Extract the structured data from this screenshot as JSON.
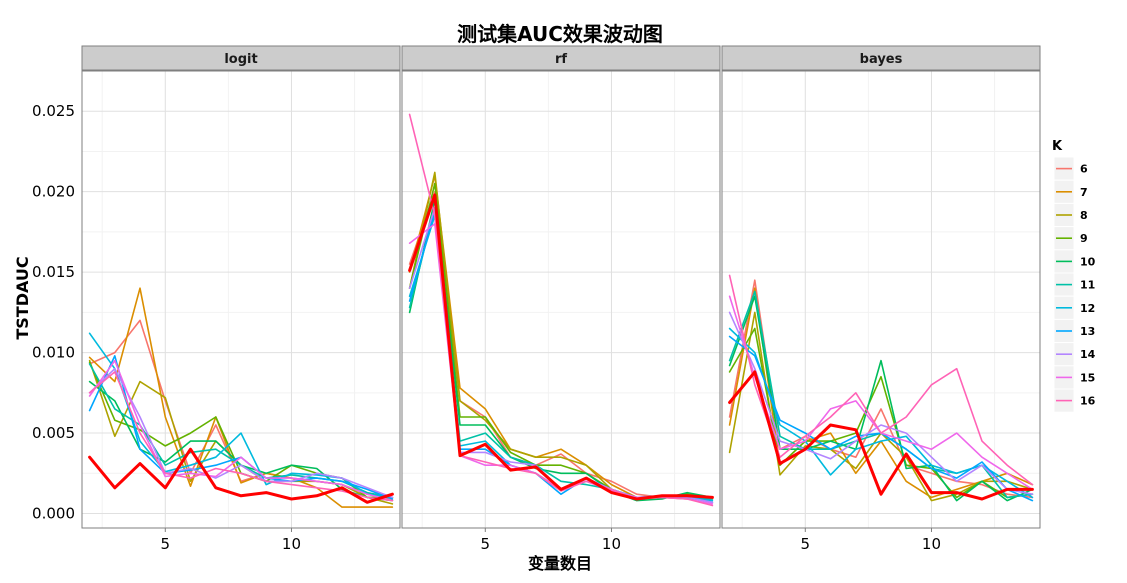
{
  "chart_data": {
    "type": "line",
    "title": "测试集AUC效果波动图",
    "xlabel": "变量数目",
    "ylabel": "TSTDAUC",
    "xlim": [
      1.7,
      14.3
    ],
    "ylim": [
      -0.0009,
      0.0275
    ],
    "x_ticks": [
      5,
      10
    ],
    "y_ticks": [
      0.0,
      0.005,
      0.01,
      0.015,
      0.02,
      0.025
    ],
    "y_tick_labels": [
      "0.000",
      "0.005",
      "0.010",
      "0.015",
      "0.020",
      "0.025"
    ],
    "grid": true,
    "legend": {
      "title": "K",
      "placement": "right"
    },
    "x": [
      2,
      3,
      4,
      5,
      6,
      7,
      8,
      9,
      10,
      11,
      12,
      13,
      14
    ],
    "panels": [
      {
        "name": "logit",
        "series": [
          {
            "name": "6",
            "color": "#F8766D",
            "values": [
              0.0093,
              0.01,
              0.012,
              0.007,
              0.0025,
              0.0055,
              0.002,
              0.0025,
              0.0022,
              0.002,
              0.0018,
              0.0012,
              0.0009
            ]
          },
          {
            "name": "7",
            "color": "#DB8E00",
            "values": [
              0.0097,
              0.0082,
              0.014,
              0.006,
              0.0017,
              0.006,
              0.0019,
              0.0025,
              0.0022,
              0.0016,
              0.0004,
              0.0004,
              0.0004
            ]
          },
          {
            "name": "8",
            "color": "#AEA200",
            "values": [
              0.0095,
              0.0048,
              0.0082,
              0.0072,
              0.002,
              0.0045,
              0.003,
              0.002,
              0.002,
              0.002,
              0.0018,
              0.001,
              0.0006
            ]
          },
          {
            "name": "9",
            "color": "#64B200",
            "values": [
              0.0094,
              0.0058,
              0.0052,
              0.0042,
              0.005,
              0.006,
              0.0025,
              0.002,
              0.003,
              0.0025,
              0.0022,
              0.001,
              0.001
            ]
          },
          {
            "name": "10",
            "color": "#00BD5C",
            "values": [
              0.0082,
              0.007,
              0.004,
              0.0032,
              0.0045,
              0.0045,
              0.003,
              0.0025,
              0.003,
              0.0028,
              0.0015,
              0.001,
              0.0008
            ]
          },
          {
            "name": "11",
            "color": "#00C1A7",
            "values": [
              0.0093,
              0.0065,
              0.0055,
              0.003,
              0.0038,
              0.004,
              0.003,
              0.0022,
              0.0024,
              0.0022,
              0.002,
              0.0013,
              0.001
            ]
          },
          {
            "name": "12",
            "color": "#00BADE",
            "values": [
              0.0112,
              0.009,
              0.0045,
              0.0026,
              0.003,
              0.0035,
              0.005,
              0.0018,
              0.0025,
              0.0024,
              0.0022,
              0.0012,
              0.001
            ]
          },
          {
            "name": "13",
            "color": "#00A6FF",
            "values": [
              0.0064,
              0.0098,
              0.004,
              0.0025,
              0.0027,
              0.003,
              0.0035,
              0.0022,
              0.002,
              0.0022,
              0.002,
              0.0015,
              0.0009
            ]
          },
          {
            "name": "14",
            "color": "#B385FF",
            "values": [
              0.0075,
              0.009,
              0.006,
              0.0025,
              0.0028,
              0.0022,
              0.003,
              0.002,
              0.002,
              0.0025,
              0.0022,
              0.0016,
              0.001
            ]
          },
          {
            "name": "15",
            "color": "#EF67EB",
            "values": [
              0.0073,
              0.0095,
              0.0055,
              0.0023,
              0.0025,
              0.0023,
              0.0035,
              0.0022,
              0.0022,
              0.002,
              0.0018,
              0.0012,
              0.0008
            ]
          },
          {
            "name": "16",
            "color": "#FF63B6",
            "values": [
              0.0075,
              0.0088,
              0.005,
              0.0025,
              0.0022,
              0.0028,
              0.0025,
              0.002,
              0.0018,
              0.0016,
              0.0014,
              0.001,
              0.0008
            ]
          },
          {
            "name": "",
            "color": "#FF0000",
            "bold": true,
            "values": [
              0.0035,
              0.0016,
              0.0031,
              0.0016,
              0.004,
              0.0016,
              0.0011,
              0.0013,
              0.0009,
              0.0011,
              0.0016,
              0.0007,
              0.0012
            ]
          }
        ]
      },
      {
        "name": "rf",
        "series": [
          {
            "name": "6",
            "color": "#F8766D",
            "values": [
              0.0155,
              0.02,
              0.007,
              0.006,
              0.0035,
              0.003,
              0.0037,
              0.0025,
              0.002,
              0.0012,
              0.001,
              0.001,
              0.001
            ]
          },
          {
            "name": "7",
            "color": "#DB8E00",
            "values": [
              0.015,
              0.021,
              0.0078,
              0.0065,
              0.004,
              0.0035,
              0.004,
              0.003,
              0.0018,
              0.001,
              0.001,
              0.0009,
              0.0009
            ]
          },
          {
            "name": "8",
            "color": "#AEA200",
            "values": [
              0.014,
              0.0212,
              0.007,
              0.0058,
              0.004,
              0.0035,
              0.0035,
              0.003,
              0.0015,
              0.001,
              0.001,
              0.001,
              0.001
            ]
          },
          {
            "name": "9",
            "color": "#64B200",
            "values": [
              0.014,
              0.0205,
              0.006,
              0.006,
              0.0038,
              0.003,
              0.003,
              0.0025,
              0.0015,
              0.0009,
              0.001,
              0.0012,
              0.001
            ]
          },
          {
            "name": "10",
            "color": "#00BD5C",
            "values": [
              0.0125,
              0.0195,
              0.0055,
              0.0055,
              0.0035,
              0.0028,
              0.0025,
              0.0025,
              0.0014,
              0.0008,
              0.0009,
              0.0013,
              0.001
            ]
          },
          {
            "name": "11",
            "color": "#00C1A7",
            "values": [
              0.0128,
              0.019,
              0.0045,
              0.005,
              0.0035,
              0.003,
              0.002,
              0.0018,
              0.0015,
              0.001,
              0.001,
              0.001,
              0.0009
            ]
          },
          {
            "name": "12",
            "color": "#00BADE",
            "values": [
              0.0135,
              0.0185,
              0.0042,
              0.0045,
              0.003,
              0.0025,
              0.0015,
              0.002,
              0.0015,
              0.001,
              0.001,
              0.001,
              0.0008
            ]
          },
          {
            "name": "13",
            "color": "#00A6FF",
            "values": [
              0.0132,
              0.0188,
              0.004,
              0.004,
              0.003,
              0.0025,
              0.0012,
              0.0022,
              0.0015,
              0.001,
              0.0011,
              0.001,
              0.0007
            ]
          },
          {
            "name": "14",
            "color": "#B385FF",
            "values": [
              0.014,
              0.019,
              0.0038,
              0.0038,
              0.0032,
              0.003,
              0.0015,
              0.0022,
              0.0015,
              0.001,
              0.0011,
              0.001,
              0.0007
            ]
          },
          {
            "name": "15",
            "color": "#EF67EB",
            "values": [
              0.0168,
              0.018,
              0.0036,
              0.003,
              0.003,
              0.0025,
              0.0015,
              0.002,
              0.0014,
              0.001,
              0.001,
              0.0009,
              0.0006
            ]
          },
          {
            "name": "16",
            "color": "#FF63B6",
            "values": [
              0.0248,
              0.0185,
              0.0036,
              0.0032,
              0.0028,
              0.0025,
              0.0014,
              0.002,
              0.0015,
              0.0009,
              0.001,
              0.0009,
              0.0005
            ]
          },
          {
            "name": "",
            "color": "#FF0000",
            "bold": true,
            "values": [
              0.0151,
              0.0198,
              0.0036,
              0.0043,
              0.0027,
              0.0029,
              0.0015,
              0.0022,
              0.0013,
              0.0009,
              0.0011,
              0.0011,
              0.001
            ]
          }
        ]
      },
      {
        "name": "bayes",
        "series": [
          {
            "name": "6",
            "color": "#F8766D",
            "values": [
              0.006,
              0.0145,
              0.004,
              0.0048,
              0.004,
              0.0035,
              0.0065,
              0.003,
              0.0025,
              0.002,
              0.0018,
              0.0012,
              0.001
            ]
          },
          {
            "name": "7",
            "color": "#DB8E00",
            "values": [
              0.0055,
              0.014,
              0.003,
              0.0045,
              0.005,
              0.0025,
              0.0045,
              0.002,
              0.001,
              0.0015,
              0.002,
              0.0025,
              0.0018
            ]
          },
          {
            "name": "8",
            "color": "#AEA200",
            "values": [
              0.0038,
              0.0125,
              0.0024,
              0.0042,
              0.004,
              0.0028,
              0.005,
              0.0035,
              0.0008,
              0.0012,
              0.002,
              0.002,
              0.0015
            ]
          },
          {
            "name": "9",
            "color": "#64B200",
            "values": [
              0.0088,
              0.0115,
              0.003,
              0.0045,
              0.0045,
              0.005,
              0.0085,
              0.003,
              0.0028,
              0.001,
              0.002,
              0.001,
              0.0012
            ]
          },
          {
            "name": "10",
            "color": "#00BD5C",
            "values": [
              0.0092,
              0.0135,
              0.004,
              0.004,
              0.0045,
              0.004,
              0.0095,
              0.0028,
              0.003,
              0.0008,
              0.002,
              0.0008,
              0.0015
            ]
          },
          {
            "name": "11",
            "color": "#00C1A7",
            "values": [
              0.0095,
              0.0138,
              0.0048,
              0.004,
              0.004,
              0.0045,
              0.005,
              0.004,
              0.0028,
              0.0025,
              0.003,
              0.001,
              0.0012
            ]
          },
          {
            "name": "12",
            "color": "#00BADE",
            "values": [
              0.0115,
              0.01,
              0.0055,
              0.0045,
              0.0024,
              0.004,
              0.0045,
              0.0048,
              0.003,
              0.0025,
              0.003,
              0.002,
              0.001
            ]
          },
          {
            "name": "13",
            "color": "#00A6FF",
            "values": [
              0.011,
              0.0098,
              0.0058,
              0.005,
              0.004,
              0.0048,
              0.005,
              0.004,
              0.0028,
              0.0022,
              0.0032,
              0.0015,
              0.0008
            ]
          },
          {
            "name": "14",
            "color": "#B385FF",
            "values": [
              0.0125,
              0.009,
              0.0045,
              0.004,
              0.0034,
              0.0045,
              0.0055,
              0.005,
              0.0035,
              0.002,
              0.003,
              0.0015,
              0.0012
            ]
          },
          {
            "name": "15",
            "color": "#EF67EB",
            "values": [
              0.0135,
              0.0085,
              0.004,
              0.0045,
              0.0065,
              0.007,
              0.005,
              0.0045,
              0.004,
              0.005,
              0.0035,
              0.0025,
              0.0015
            ]
          },
          {
            "name": "16",
            "color": "#FF63B6",
            "values": [
              0.0148,
              0.008,
              0.0035,
              0.0048,
              0.006,
              0.0075,
              0.005,
              0.006,
              0.008,
              0.009,
              0.0045,
              0.003,
              0.0018
            ]
          },
          {
            "name": "",
            "color": "#FF0000",
            "bold": true,
            "values": [
              0.0069,
              0.0088,
              0.0031,
              0.004,
              0.0055,
              0.0052,
              0.0012,
              0.0037,
              0.0013,
              0.0013,
              0.0009,
              0.0015,
              0.0015
            ]
          }
        ]
      }
    ]
  }
}
